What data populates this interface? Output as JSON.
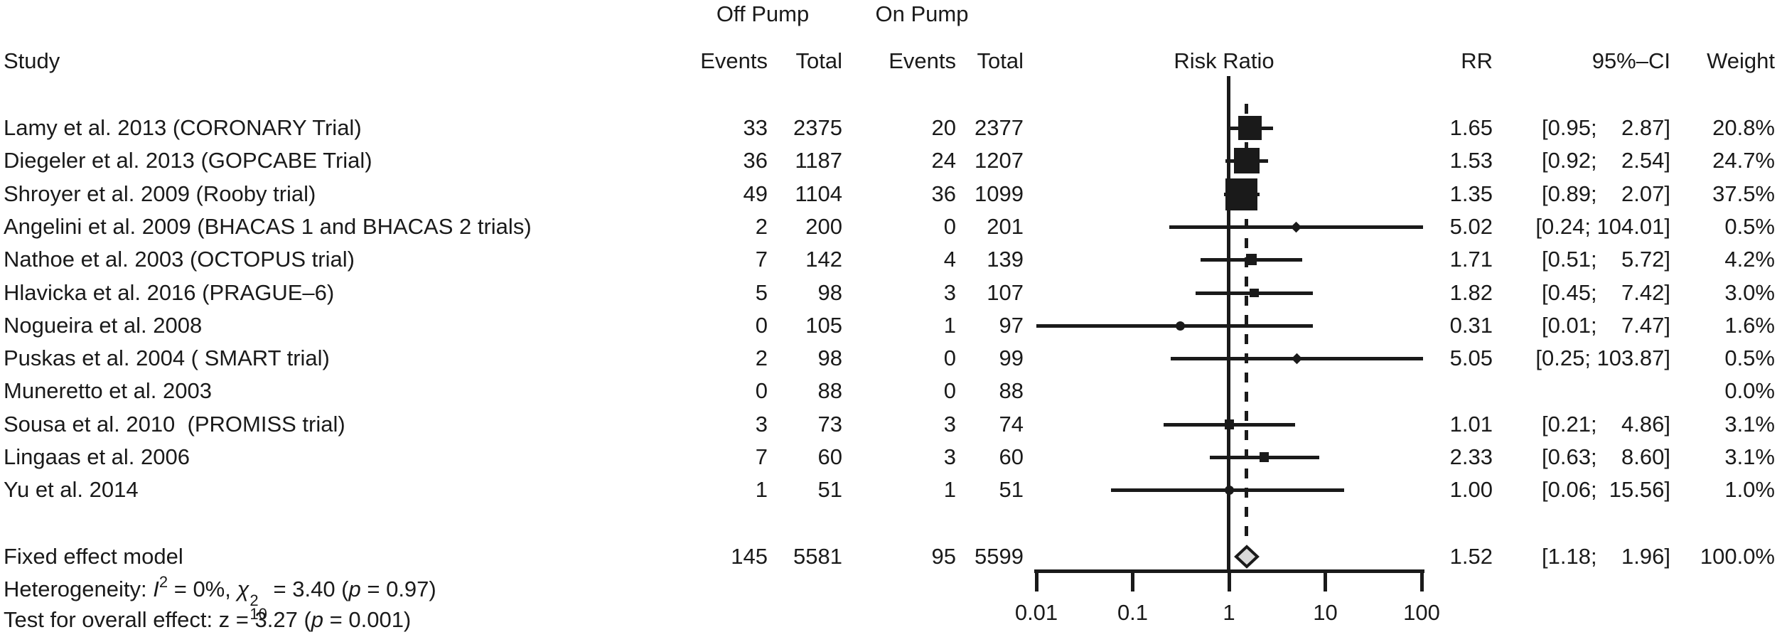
{
  "header": {
    "off_pump": "Off Pump",
    "on_pump": "On Pump",
    "study": "Study",
    "off_events": "Events",
    "off_total": "Total",
    "on_events": "Events",
    "on_total": "Total",
    "risk_ratio": "Risk Ratio",
    "rr": "RR",
    "ci": "95%–CI",
    "weight": "Weight"
  },
  "footer": {
    "het": {
      "pre": "Heterogeneity: ",
      "i": "I",
      "i_sup": "2",
      "mid": " = 0%, ",
      "chi": "χ",
      "chi_sup": "2",
      "chi_sub": "10",
      "eq": " = 3.40 (",
      "p": "p",
      "post": " = 0.97)"
    },
    "test": {
      "pre": "Test for overall effect: z = 3.27 (",
      "p": "p",
      "post": " = 0.001)"
    }
  },
  "chart_data": {
    "type": "forest",
    "scale": "log10",
    "effect_measure": "Risk Ratio",
    "x_axis": {
      "ticks": [
        0.01,
        0.1,
        1,
        10,
        100
      ],
      "tick_labels": [
        "0.01",
        "0.1",
        "1",
        "10",
        "100"
      ]
    },
    "reference_line": 1,
    "summary_line": 1.52,
    "studies": [
      {
        "label": "Lamy et al. 2013 (CORONARY Trial)",
        "off_events": 33,
        "off_total": 2375,
        "on_events": 20,
        "on_total": 2377,
        "rr": 1.65,
        "ci_low": 0.95,
        "ci_high": 2.87,
        "weight_pct": 20.8,
        "marker": "square",
        "rr_text": "1.65",
        "ci_text": "[0.95;  2.87]",
        "weight_text": "20.8%"
      },
      {
        "label": "Diegeler et al. 2013 (GOPCABE Trial)",
        "off_events": 36,
        "off_total": 1187,
        "on_events": 24,
        "on_total": 1207,
        "rr": 1.53,
        "ci_low": 0.92,
        "ci_high": 2.54,
        "weight_pct": 24.7,
        "marker": "square",
        "rr_text": "1.53",
        "ci_text": "[0.92;  2.54]",
        "weight_text": "24.7%"
      },
      {
        "label": "Shroyer et al. 2009 (Rooby trial)",
        "off_events": 49,
        "off_total": 1104,
        "on_events": 36,
        "on_total": 1099,
        "rr": 1.35,
        "ci_low": 0.89,
        "ci_high": 2.07,
        "weight_pct": 37.5,
        "marker": "square",
        "rr_text": "1.35",
        "ci_text": "[0.89;  2.07]",
        "weight_text": "37.5%"
      },
      {
        "label": "Angelini et al. 2009 (BHACAS 1 and BHACAS 2 trials)",
        "off_events": 2,
        "off_total": 200,
        "on_events": 0,
        "on_total": 201,
        "rr": 5.02,
        "ci_low": 0.24,
        "ci_high": 104.01,
        "weight_pct": 0.5,
        "marker": "diamond",
        "rr_text": "5.02",
        "ci_text": "[0.24; 104.01]",
        "weight_text": "0.5%"
      },
      {
        "label": "Nathoe et al. 2003 (OCTOPUS trial)",
        "off_events": 7,
        "off_total": 142,
        "on_events": 4,
        "on_total": 139,
        "rr": 1.71,
        "ci_low": 0.51,
        "ci_high": 5.72,
        "weight_pct": 4.2,
        "marker": "square",
        "rr_text": "1.71",
        "ci_text": "[0.51;  5.72]",
        "weight_text": "4.2%"
      },
      {
        "label": "Hlavicka et al. 2016 (PRAGUE–6)",
        "off_events": 5,
        "off_total": 98,
        "on_events": 3,
        "on_total": 107,
        "rr": 1.82,
        "ci_low": 0.45,
        "ci_high": 7.42,
        "weight_pct": 3.0,
        "marker": "square",
        "rr_text": "1.82",
        "ci_text": "[0.45;  7.42]",
        "weight_text": "3.0%"
      },
      {
        "label": "Nogueira et al. 2008",
        "off_events": 0,
        "off_total": 105,
        "on_events": 1,
        "on_total": 97,
        "rr": 0.31,
        "ci_low": 0.01,
        "ci_high": 7.47,
        "weight_pct": 1.6,
        "marker": "circle",
        "rr_text": "0.31",
        "ci_text": "[0.01;  7.47]",
        "weight_text": "1.6%"
      },
      {
        "label": "Puskas et al. 2004 ( SMART trial)",
        "off_events": 2,
        "off_total": 98,
        "on_events": 0,
        "on_total": 99,
        "rr": 5.05,
        "ci_low": 0.25,
        "ci_high": 103.87,
        "weight_pct": 0.5,
        "marker": "diamond",
        "rr_text": "5.05",
        "ci_text": "[0.25; 103.87]",
        "weight_text": "0.5%"
      },
      {
        "label": "Muneretto et al. 2003",
        "off_events": 0,
        "off_total": 88,
        "on_events": 0,
        "on_total": 88,
        "rr": null,
        "ci_low": null,
        "ci_high": null,
        "weight_pct": 0.0,
        "marker": null,
        "rr_text": "",
        "ci_text": "",
        "weight_text": "0.0%"
      },
      {
        "label": "Sousa et al. 2010  (PROMISS trial)",
        "off_events": 3,
        "off_total": 73,
        "on_events": 3,
        "on_total": 74,
        "rr": 1.01,
        "ci_low": 0.21,
        "ci_high": 4.86,
        "weight_pct": 3.1,
        "marker": "square",
        "rr_text": "1.01",
        "ci_text": "[0.21;  4.86]",
        "weight_text": "3.1%"
      },
      {
        "label": "Lingaas et al. 2006",
        "off_events": 7,
        "off_total": 60,
        "on_events": 3,
        "on_total": 60,
        "rr": 2.33,
        "ci_low": 0.63,
        "ci_high": 8.6,
        "weight_pct": 3.1,
        "marker": "square",
        "rr_text": "2.33",
        "ci_text": "[0.63;  8.60]",
        "weight_text": "3.1%"
      },
      {
        "label": "Yu et al. 2014",
        "off_events": 1,
        "off_total": 51,
        "on_events": 1,
        "on_total": 51,
        "rr": 1.0,
        "ci_low": 0.06,
        "ci_high": 15.56,
        "weight_pct": 1.0,
        "marker": "circle",
        "rr_text": "1.00",
        "ci_text": "[0.06; 15.56]",
        "weight_text": "1.0%"
      }
    ],
    "summary": {
      "label": "Fixed effect model",
      "off_events": 145,
      "off_total": 5581,
      "on_events": 95,
      "on_total": 5599,
      "rr": 1.52,
      "ci_low": 1.18,
      "ci_high": 1.96,
      "weight_pct": 100.0,
      "rr_text": "1.52",
      "ci_text": "[1.18;  1.96]",
      "weight_text": "100.0%"
    },
    "heterogeneity": {
      "i_squared_pct": 0,
      "chi_squared": 3.4,
      "df": 10,
      "p_value": 0.97
    },
    "overall_effect": {
      "z": 3.27,
      "p_value": 0.001
    },
    "diamond_fill": "#d9d9d9",
    "ink_color": "#1a1a1a"
  }
}
